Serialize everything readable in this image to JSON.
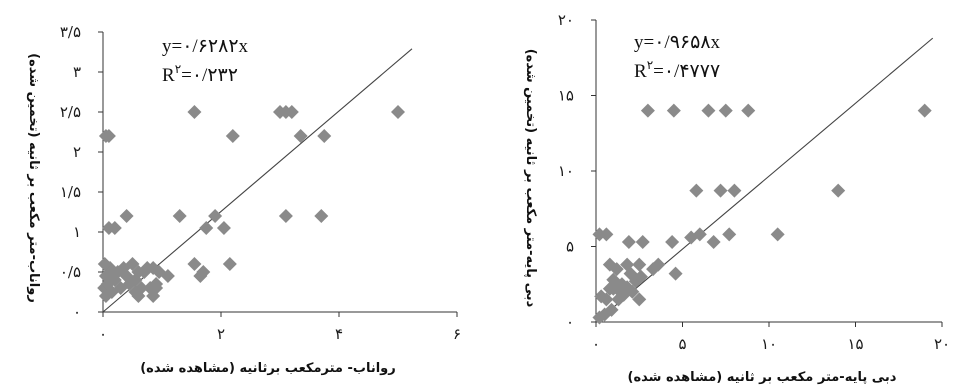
{
  "chart_data": [
    {
      "type": "scatter",
      "title": "",
      "xlabel": "رواناب- مترمکعب برثانیه (مشاهده شده)",
      "ylabel": "رواناب-متر مکعب بر ثانیه (تخمین شده)",
      "xlim": [
        0,
        6
      ],
      "ylim": [
        0,
        3.5
      ],
      "xticks": [
        "۰",
        "۲",
        "۴",
        "۶"
      ],
      "yticks": [
        "۰",
        "۰/۵",
        "۱",
        "۱/۵",
        "۲",
        "۲/۵",
        "۳",
        "۳/۵"
      ],
      "equation": "y=۰/۶۲۸۲x",
      "r2_label": "R",
      "r2_sup": "۲",
      "r2_value": "=۰/۲۳۲",
      "trend_slope": 0.6282,
      "marker_color": "#8a8a8a",
      "points": [
        [
          0.05,
          0.2
        ],
        [
          0.02,
          0.3
        ],
        [
          0.08,
          0.35
        ],
        [
          0.1,
          0.45
        ],
        [
          0.05,
          0.45
        ],
        [
          0.12,
          0.55
        ],
        [
          0.03,
          0.6
        ],
        [
          0.15,
          0.25
        ],
        [
          0.2,
          0.4
        ],
        [
          0.25,
          0.5
        ],
        [
          0.1,
          1.05
        ],
        [
          0.2,
          1.05
        ],
        [
          0.05,
          2.2
        ],
        [
          0.1,
          2.2
        ],
        [
          0.3,
          0.3
        ],
        [
          0.35,
          0.55
        ],
        [
          0.4,
          0.45
        ],
        [
          0.45,
          0.35
        ],
        [
          0.5,
          0.6
        ],
        [
          0.55,
          0.4
        ],
        [
          0.6,
          0.5
        ],
        [
          0.6,
          0.2
        ],
        [
          0.7,
          0.5
        ],
        [
          0.75,
          0.55
        ],
        [
          0.8,
          0.3
        ],
        [
          0.85,
          0.2
        ],
        [
          0.9,
          0.35
        ],
        [
          0.95,
          0.5
        ],
        [
          0.85,
          0.55
        ],
        [
          0.4,
          1.2
        ],
        [
          0.55,
          0.25
        ],
        [
          0.65,
          0.3
        ],
        [
          0.9,
          0.3
        ],
        [
          1.1,
          0.45
        ],
        [
          1.3,
          1.2
        ],
        [
          1.55,
          0.6
        ],
        [
          1.65,
          0.45
        ],
        [
          1.7,
          0.5
        ],
        [
          1.75,
          1.05
        ],
        [
          1.9,
          1.2
        ],
        [
          2.05,
          1.05
        ],
        [
          2.15,
          0.6
        ],
        [
          1.55,
          2.5
        ],
        [
          2.2,
          2.2
        ],
        [
          3.0,
          2.5
        ],
        [
          3.1,
          2.5
        ],
        [
          3.2,
          2.5
        ],
        [
          3.1,
          1.2
        ],
        [
          3.35,
          2.2
        ],
        [
          3.7,
          1.2
        ],
        [
          3.75,
          2.2
        ],
        [
          5.0,
          2.5
        ]
      ]
    },
    {
      "type": "scatter",
      "title": "",
      "xlabel": "دبی پایه-متر مکعب بر ثانیه (مشاهده شده)",
      "ylabel": "دبی پایه-متر مکعب بر ثانیه (تخمین شده)",
      "xlim": [
        0,
        20
      ],
      "ylim": [
        0,
        20
      ],
      "xticks": [
        "۰",
        "۵",
        "۱۰",
        "۱۵",
        "۲۰"
      ],
      "yticks": [
        "۰",
        "۵",
        "۱۰",
        "۱۵",
        "۲۰"
      ],
      "equation": "y=۰/۹۶۵۸x",
      "r2_label": "R",
      "r2_sup": "۲",
      "r2_value": "=۰/۴۷۷۷",
      "trend_slope": 0.9658,
      "marker_color": "#8a8a8a",
      "points": [
        [
          0.2,
          0.3
        ],
        [
          0.3,
          1.7
        ],
        [
          0.5,
          0.5
        ],
        [
          0.6,
          1.5
        ],
        [
          0.8,
          2.2
        ],
        [
          0.9,
          0.8
        ],
        [
          1.0,
          2.8
        ],
        [
          1.2,
          3.5
        ],
        [
          1.3,
          1.5
        ],
        [
          1.4,
          2.0
        ],
        [
          1.5,
          2.5
        ],
        [
          1.6,
          1.8
        ],
        [
          1.8,
          2.3
        ],
        [
          2.0,
          3.2
        ],
        [
          2.1,
          2.0
        ],
        [
          2.3,
          2.7
        ],
        [
          2.5,
          1.5
        ],
        [
          2.6,
          3.0
        ],
        [
          0.2,
          5.8
        ],
        [
          0.6,
          5.8
        ],
        [
          1.0,
          2.2
        ],
        [
          0.8,
          3.8
        ],
        [
          1.8,
          3.8
        ],
        [
          1.9,
          5.3
        ],
        [
          2.5,
          3.8
        ],
        [
          2.7,
          5.3
        ],
        [
          3.3,
          3.5
        ],
        [
          3.6,
          3.8
        ],
        [
          3.0,
          14.0
        ],
        [
          4.5,
          14.0
        ],
        [
          4.4,
          5.3
        ],
        [
          4.6,
          3.2
        ],
        [
          5.5,
          5.6
        ],
        [
          5.8,
          8.7
        ],
        [
          6.0,
          5.8
        ],
        [
          6.5,
          14.0
        ],
        [
          6.8,
          5.3
        ],
        [
          7.2,
          8.7
        ],
        [
          7.5,
          14.0
        ],
        [
          7.7,
          5.8
        ],
        [
          8.0,
          8.7
        ],
        [
          8.8,
          14.0
        ],
        [
          10.5,
          5.8
        ],
        [
          14.0,
          8.7
        ],
        [
          19.0,
          14.0
        ]
      ]
    }
  ]
}
